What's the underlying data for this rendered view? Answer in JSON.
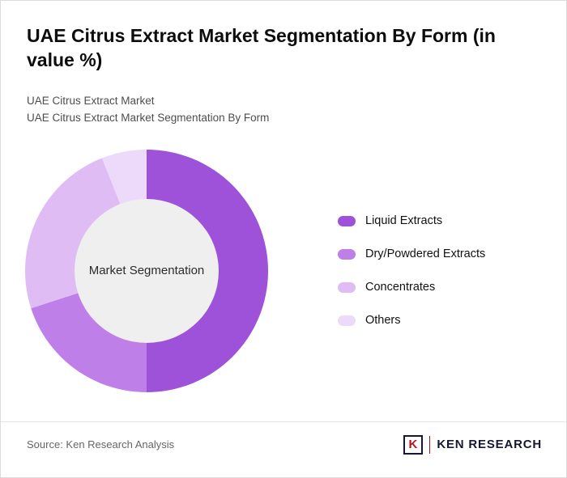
{
  "header": {
    "title": "UAE Citrus Extract Market Segmentation By Form (in value %)",
    "subtitle1": "UAE Citrus Extract Market",
    "subtitle2": "UAE Citrus Extract Market Segmentation By Form"
  },
  "chart_data": {
    "type": "pie",
    "donut": true,
    "title": "UAE Citrus Extract Market Segmentation By Form (in value %)",
    "center_label": "Market Segmentation",
    "categories": [
      "Liquid Extracts",
      "Dry/Powdered Extracts",
      "Concentrates",
      "Others"
    ],
    "values": [
      50,
      20,
      24,
      6
    ],
    "colors": [
      "#9d52d9",
      "#be7fe8",
      "#e0bcf4",
      "#edd9fa"
    ],
    "start_angle_deg": 0,
    "direction": "clockwise",
    "legend_position": "right",
    "hole_color": "#efefef"
  },
  "footer": {
    "source": "Source: Ken Research Analysis",
    "logo_letter": "K",
    "logo_text": "KEN RESEARCH",
    "logo_accent_color": "#b5121b",
    "logo_dark_color": "#171731"
  }
}
